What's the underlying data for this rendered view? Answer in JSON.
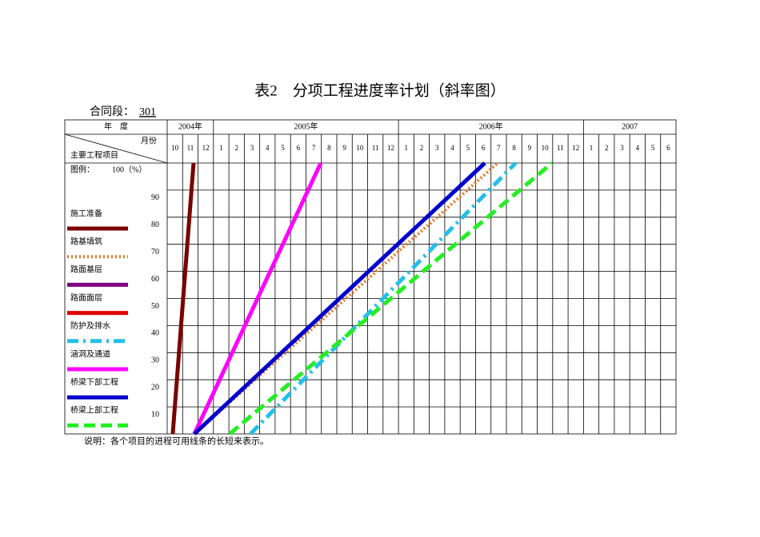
{
  "header": {
    "title": "表2　分项工程进度率计划（斜率图）",
    "contract_label": "合同段：",
    "contract_no": "301"
  },
  "table": {
    "year_header": "年　度",
    "month_header": "月份",
    "item_header": "主要工程项目",
    "years": [
      {
        "label": "2004年",
        "months": [
          "10",
          "11",
          "12"
        ]
      },
      {
        "label": "2005年",
        "months": [
          "1",
          "2",
          "3",
          "4",
          "5",
          "6",
          "7",
          "8",
          "9",
          "10",
          "11",
          "12"
        ]
      },
      {
        "label": "2006年",
        "months": [
          "1",
          "2",
          "3",
          "4",
          "5",
          "6",
          "7",
          "8",
          "9",
          "10",
          "11",
          "12"
        ]
      },
      {
        "label": "2007",
        "months": [
          "1",
          "2",
          "3",
          "4",
          "5",
          "6"
        ]
      }
    ],
    "legend_title": "图例：",
    "scale_top": "100（%）",
    "ylim": [
      0,
      100
    ],
    "yticks": [
      90,
      80,
      70,
      60,
      50,
      40,
      30,
      20,
      10
    ],
    "items": [
      {
        "name": "施工准备",
        "color": "#7b0000",
        "style": "solid",
        "x": [
          0.36,
          1.71
        ],
        "y": [
          0,
          100
        ]
      },
      {
        "name": "路基填筑",
        "color": "#e87722",
        "style": "dotted",
        "x": [
          1.76,
          21.43
        ],
        "y": [
          0,
          100
        ]
      },
      {
        "name": "路面基层",
        "color": "#800080",
        "style": "solid"
      },
      {
        "name": "路面面层",
        "color": "#e00000",
        "style": "solid"
      },
      {
        "name": "防护及排水",
        "color": "#22c0e8",
        "style": "dashdot",
        "x": [
          5.4,
          22.6
        ],
        "y": [
          0,
          100
        ]
      },
      {
        "name": "涵洞及通道",
        "color": "#ff00ff",
        "style": "solid",
        "x": [
          1.76,
          9.96
        ],
        "y": [
          0,
          100
        ]
      },
      {
        "name": "桥梁下部工程",
        "color": "#0000cc",
        "style": "solid",
        "x": [
          1.76,
          20.6
        ],
        "y": [
          0,
          100
        ]
      },
      {
        "name": "桥梁上部工程",
        "color": "#22ee22",
        "style": "dashed",
        "x": [
          4.05,
          24.96
        ],
        "y": [
          0,
          100
        ]
      }
    ]
  },
  "footnote": "说明：各个项目的进程可用线条的长短来表示。"
}
